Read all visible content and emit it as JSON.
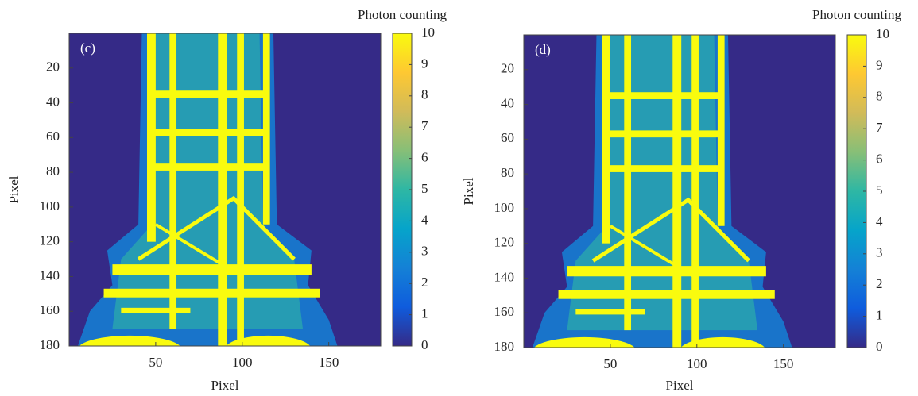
{
  "chart_data": [
    {
      "type": "heatmap",
      "panel_label": "(c)",
      "xlabel": "Pixel",
      "ylabel": "Pixel",
      "xlim": [
        0,
        180
      ],
      "xticks": [
        50,
        100,
        150
      ],
      "ylim": [
        0,
        180
      ],
      "yticks": [
        20,
        40,
        60,
        80,
        100,
        120,
        140,
        160,
        180
      ],
      "colorbar_label": "Photon counting",
      "clim": [
        0,
        10
      ],
      "cticks": [
        0,
        1,
        2,
        3,
        4,
        5,
        6,
        7,
        8,
        9,
        10
      ],
      "colors": [
        "#352a87",
        "#0f5cdd",
        "#1481d6",
        "#06a4ca",
        "#2eb7a4",
        "#87bf77",
        "#d1bb59",
        "#fec832",
        "#f9fb0e"
      ]
    },
    {
      "type": "heatmap",
      "panel_label": "(d)",
      "xlabel": "Pixel",
      "ylabel": "Pixel",
      "xlim": [
        0,
        180
      ],
      "xticks": [
        50,
        100,
        150
      ],
      "ylim": [
        0,
        180
      ],
      "yticks": [
        20,
        40,
        60,
        80,
        100,
        120,
        140,
        160,
        180
      ],
      "colorbar_label": "Photon counting",
      "clim": [
        0,
        10
      ],
      "cticks": [
        0,
        1,
        2,
        3,
        4,
        5,
        6,
        7,
        8,
        9,
        10
      ],
      "colors": [
        "#352a87",
        "#0f5cdd",
        "#1481d6",
        "#06a4ca",
        "#2eb7a4",
        "#87bf77",
        "#d1bb59",
        "#fec832",
        "#f9fb0e"
      ]
    }
  ]
}
